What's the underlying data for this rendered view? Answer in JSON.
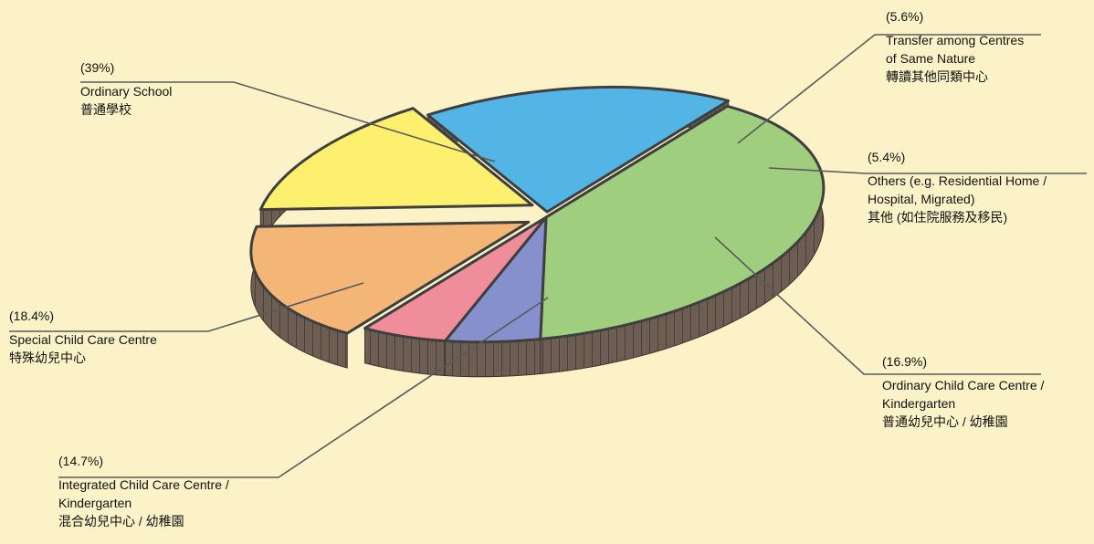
{
  "chart_data": {
    "type": "pie",
    "title": "",
    "slices": [
      {
        "pct": "(39%)",
        "value": 39.0,
        "label_en": "Ordinary School",
        "label_zh": "普通學校",
        "color": "#9fce7f"
      },
      {
        "pct": "(5.6%)",
        "value": 5.6,
        "label_en": "Transfer among Centres\nof Same Nature",
        "label_zh": "轉讀其他同類中心",
        "color": "#8590cc"
      },
      {
        "pct": "(5.4%)",
        "value": 5.4,
        "label_en": "Others (e.g. Residential Home /\nHospital, Migrated)",
        "label_zh": "其他 (如住院服務及移民)",
        "color": "#f08d9a"
      },
      {
        "pct": "(16.9%)",
        "value": 16.9,
        "label_en": "Ordinary Child Care Centre /\nKindergarten",
        "label_zh": "普通幼兒中心 / 幼稚園",
        "color": "#f4b676"
      },
      {
        "pct": "(14.7%)",
        "value": 14.7,
        "label_en": "Integrated Child Care Centre /\nKindergarten",
        "label_zh": "混合幼兒中心 / 幼稚園",
        "color": "#fdf06e"
      },
      {
        "pct": "(18.4%)",
        "value": 18.4,
        "label_en": "Special Child Care Centre",
        "label_zh": "特殊幼兒中心",
        "color": "#53b4e6"
      }
    ]
  }
}
